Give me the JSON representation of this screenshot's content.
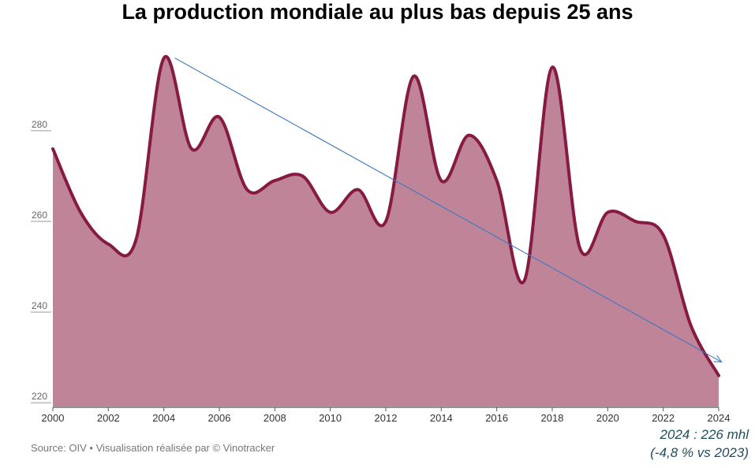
{
  "chart_data": {
    "type": "area",
    "title": "La production mondiale au plus bas depuis 25 ans",
    "x": [
      2000,
      2001,
      2002,
      2003,
      2004,
      2005,
      2006,
      2007,
      2008,
      2009,
      2010,
      2011,
      2012,
      2013,
      2014,
      2015,
      2016,
      2017,
      2018,
      2019,
      2020,
      2021,
      2022,
      2023,
      2024
    ],
    "values": [
      276,
      262,
      255,
      256,
      296,
      276,
      283,
      267,
      269,
      270,
      262,
      267,
      260,
      292,
      269,
      279,
      269,
      247,
      294,
      254,
      262,
      260,
      257,
      237,
      226
    ],
    "yticks": [
      220,
      240,
      260,
      280
    ],
    "xticks": [
      2000,
      2002,
      2004,
      2006,
      2008,
      2010,
      2012,
      2014,
      2016,
      2018,
      2020,
      2022,
      2024
    ],
    "ylim": [
      219,
      301
    ],
    "xlim": [
      2000,
      2024
    ],
    "trend": {
      "from": [
        2004.4,
        296
      ],
      "to": [
        2024.1,
        229
      ]
    },
    "colors": {
      "fill": "#bf8497",
      "line": "#871a42",
      "trend": "#3d78c2"
    },
    "grid": false,
    "source": "Source: OIV • Visualisation réalisée par © Vinotracker",
    "annotation": {
      "line1": "2024 : 226 mhl",
      "line2": "(-4,8 % vs 2023)"
    }
  }
}
